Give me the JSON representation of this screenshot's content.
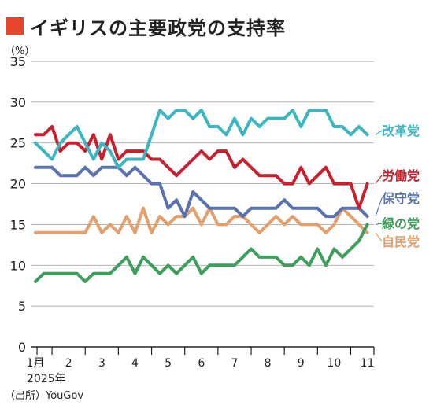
{
  "title": "イギリスの主要政党の支持率",
  "colors": {
    "accent": "#e8462a",
    "grid": "#aaaaaa",
    "axis": "#222222"
  },
  "chart_data": {
    "type": "line",
    "title": "イギリスの主要政党の支持率",
    "unit_label": "（%）",
    "source": "（出所）YouGov",
    "year_label": "2025年",
    "ylim": [
      0,
      35
    ],
    "yticks": [
      0,
      5,
      10,
      15,
      20,
      25,
      30,
      35
    ],
    "xlim": [
      1,
      11.2
    ],
    "months": [
      {
        "value": 1,
        "label": "1月"
      },
      {
        "value": 2,
        "label": "2"
      },
      {
        "value": 3,
        "label": "3"
      },
      {
        "value": 4,
        "label": "4"
      },
      {
        "value": 5,
        "label": "5"
      },
      {
        "value": 6,
        "label": "6"
      },
      {
        "value": 7,
        "label": "7"
      },
      {
        "value": 8,
        "label": "8"
      },
      {
        "value": 9,
        "label": "9"
      },
      {
        "value": 10,
        "label": "10"
      },
      {
        "value": 11,
        "label": "11"
      }
    ],
    "grid": true,
    "legend": "right",
    "series": [
      {
        "name": "改革党",
        "color": "#3db6c2",
        "x": [
          1.0,
          1.25,
          1.5,
          1.75,
          2.0,
          2.25,
          2.5,
          2.75,
          3.0,
          3.25,
          3.5,
          3.75,
          4.0,
          4.25,
          4.5,
          4.75,
          5.0,
          5.25,
          5.5,
          5.75,
          6.0,
          6.25,
          6.5,
          6.75,
          7.0,
          7.25,
          7.5,
          7.75,
          8.0,
          8.25,
          8.5,
          8.75,
          9.0,
          9.25,
          9.5,
          9.75,
          10.0,
          10.25,
          10.5,
          10.75,
          11.0
        ],
        "y": [
          25,
          24,
          23,
          25,
          26,
          27,
          25,
          23,
          25,
          24,
          22,
          23,
          23,
          23,
          26,
          29,
          28,
          29,
          29,
          28,
          29,
          27,
          27,
          26,
          28,
          26,
          28,
          27,
          28,
          28,
          28,
          29,
          27,
          29,
          29,
          29,
          27,
          27,
          26,
          27,
          26
        ]
      },
      {
        "name": "労働党",
        "color": "#c8202c",
        "x": [
          1.0,
          1.25,
          1.5,
          1.75,
          2.0,
          2.25,
          2.5,
          2.75,
          3.0,
          3.25,
          3.5,
          3.75,
          4.0,
          4.25,
          4.5,
          4.75,
          5.0,
          5.25,
          5.5,
          5.75,
          6.0,
          6.25,
          6.5,
          6.75,
          7.0,
          7.25,
          7.5,
          7.75,
          8.0,
          8.25,
          8.5,
          8.75,
          9.0,
          9.25,
          9.5,
          9.75,
          10.0,
          10.25,
          10.5,
          10.75,
          11.0
        ],
        "y": [
          26,
          26,
          27,
          24,
          25,
          25,
          24,
          26,
          23,
          26,
          23,
          24,
          24,
          24,
          23,
          23,
          22,
          21,
          22,
          23,
          24,
          23,
          24,
          24,
          22,
          23,
          22,
          21,
          21,
          21,
          20,
          20,
          22,
          20,
          21,
          22,
          20,
          20,
          20,
          17,
          20
        ]
      },
      {
        "name": "保守党",
        "color": "#5a72b0",
        "x": [
          1.0,
          1.25,
          1.5,
          1.75,
          2.0,
          2.25,
          2.5,
          2.75,
          3.0,
          3.25,
          3.5,
          3.75,
          4.0,
          4.25,
          4.5,
          4.75,
          5.0,
          5.25,
          5.5,
          5.75,
          6.0,
          6.25,
          6.5,
          6.75,
          7.0,
          7.25,
          7.5,
          7.75,
          8.0,
          8.25,
          8.5,
          8.75,
          9.0,
          9.25,
          9.5,
          9.75,
          10.0,
          10.25,
          10.5,
          10.75,
          11.0
        ],
        "y": [
          22,
          22,
          22,
          21,
          21,
          21,
          22,
          21,
          22,
          22,
          22,
          21,
          22,
          21,
          20,
          20,
          17,
          18,
          16,
          19,
          18,
          17,
          17,
          17,
          17,
          16,
          17,
          17,
          17,
          17,
          18,
          17,
          17,
          17,
          17,
          16,
          16,
          17,
          17,
          17,
          16
        ]
      },
      {
        "name": "緑の党",
        "color": "#3e9e5c",
        "x": [
          1.0,
          1.25,
          1.5,
          1.75,
          2.0,
          2.25,
          2.5,
          2.75,
          3.0,
          3.25,
          3.5,
          3.75,
          4.0,
          4.25,
          4.5,
          4.75,
          5.0,
          5.25,
          5.5,
          5.75,
          6.0,
          6.25,
          6.5,
          6.75,
          7.0,
          7.25,
          7.5,
          7.75,
          8.0,
          8.25,
          8.5,
          8.75,
          9.0,
          9.25,
          9.5,
          9.75,
          10.0,
          10.25,
          10.5,
          10.75,
          11.0
        ],
        "y": [
          8,
          9,
          9,
          9,
          9,
          9,
          8,
          9,
          9,
          9,
          10,
          11,
          9,
          11,
          10,
          9,
          10,
          9,
          10,
          11,
          9,
          10,
          10,
          10,
          10,
          11,
          12,
          11,
          11,
          11,
          10,
          10,
          11,
          10,
          12,
          10,
          12,
          11,
          12,
          13,
          15
        ]
      },
      {
        "name": "自民党",
        "color": "#e3a06c",
        "x": [
          1.0,
          1.25,
          1.5,
          1.75,
          2.0,
          2.25,
          2.5,
          2.75,
          3.0,
          3.25,
          3.5,
          3.75,
          4.0,
          4.25,
          4.5,
          4.75,
          5.0,
          5.25,
          5.5,
          5.75,
          6.0,
          6.25,
          6.5,
          6.75,
          7.0,
          7.25,
          7.5,
          7.75,
          8.0,
          8.25,
          8.5,
          8.75,
          9.0,
          9.25,
          9.5,
          9.75,
          10.0,
          10.25,
          10.5,
          10.75,
          11.0
        ],
        "y": [
          14,
          14,
          14,
          14,
          14,
          14,
          14,
          16,
          14,
          15,
          14,
          16,
          14,
          17,
          14,
          16,
          15,
          16,
          16,
          17,
          15,
          17,
          15,
          15,
          16,
          16,
          15,
          14,
          15,
          16,
          15,
          16,
          15,
          15,
          15,
          14,
          15,
          17,
          16,
          15,
          14
        ]
      }
    ]
  }
}
